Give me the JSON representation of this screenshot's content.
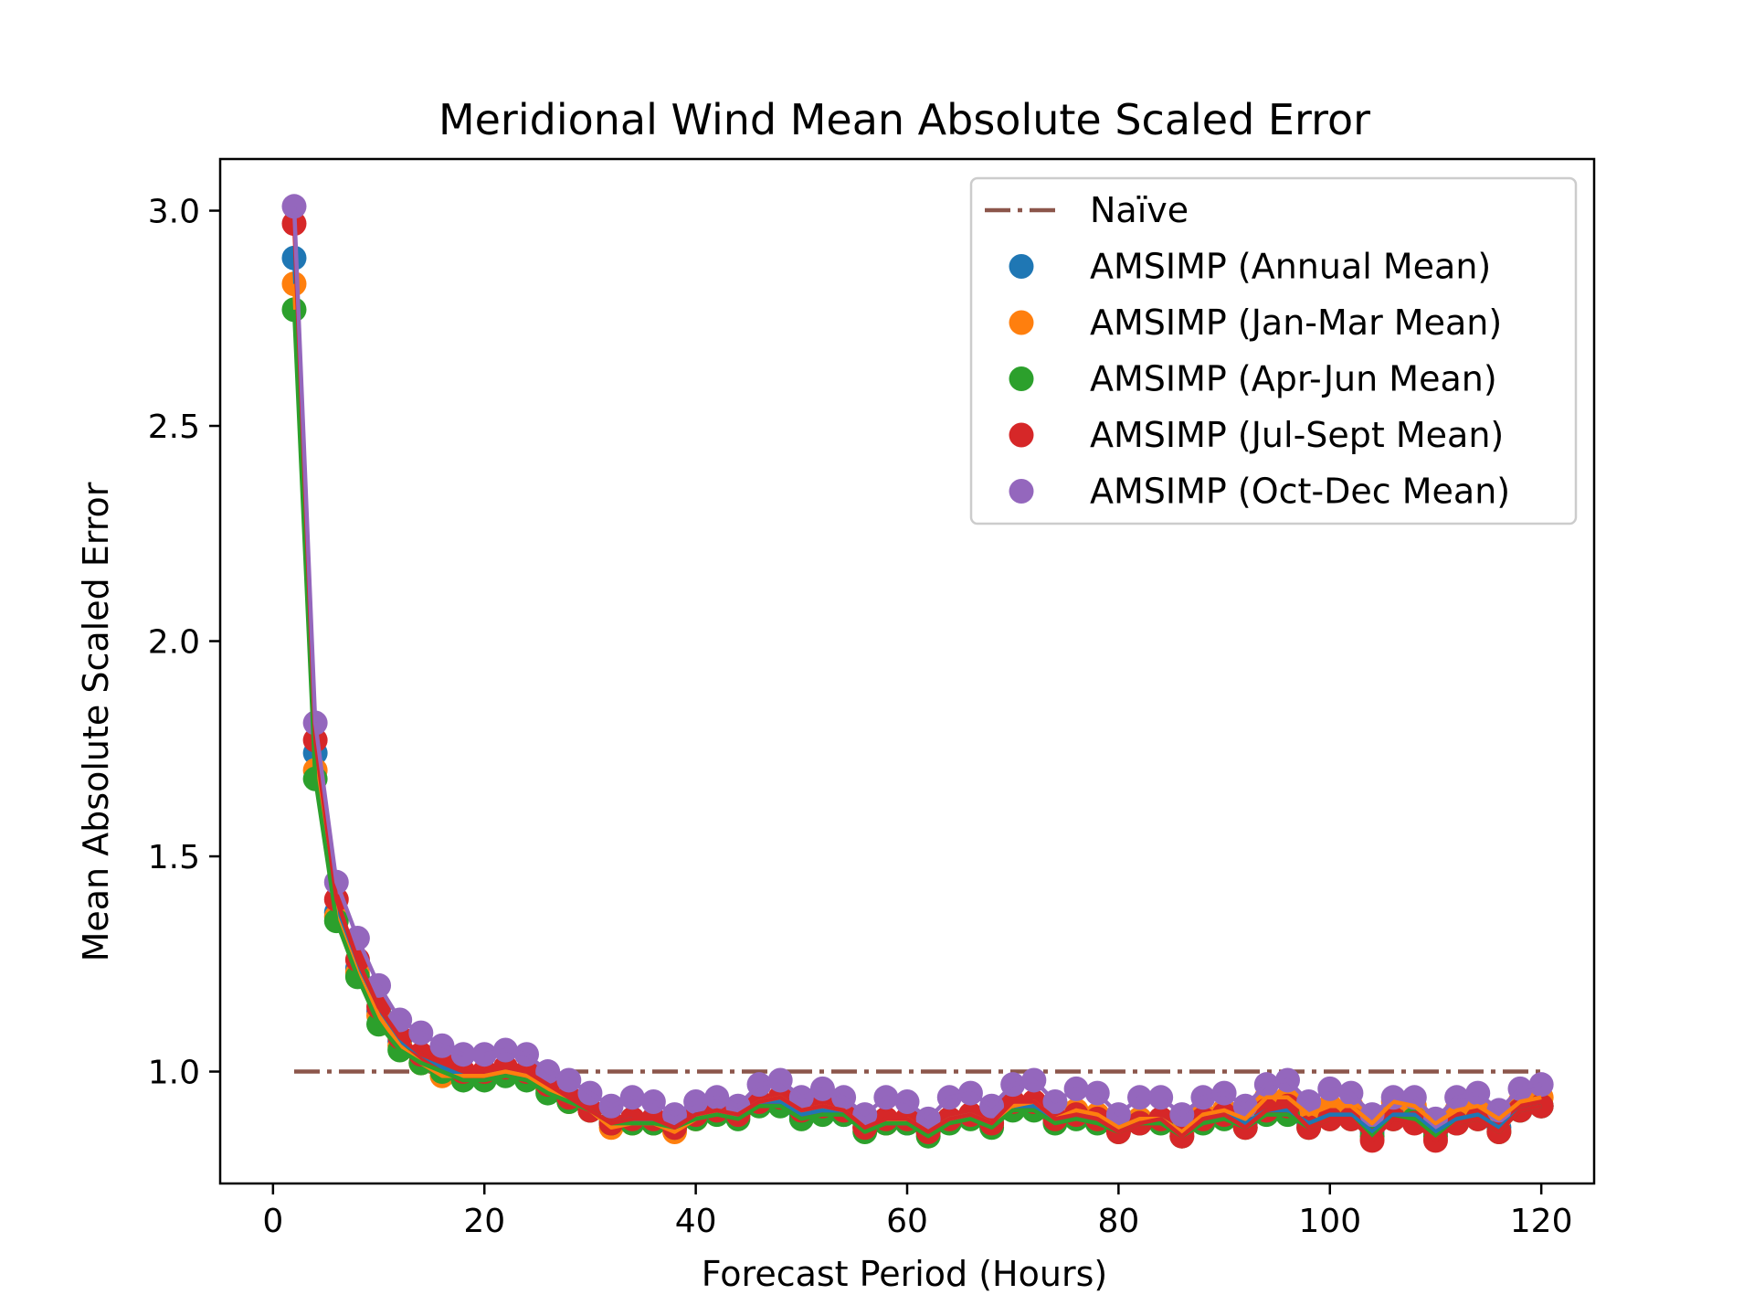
{
  "chart_data": {
    "type": "scatter",
    "title": "Meridional Wind Mean Absolute Scaled Error",
    "xlabel": "Forecast Period (Hours)",
    "ylabel": "Mean Absolute Scaled Error",
    "xlim": [
      -5,
      125
    ],
    "ylim": [
      0.74,
      3.12
    ],
    "xticks": [
      0,
      20,
      40,
      60,
      80,
      100,
      120
    ],
    "xtick_labels": [
      "0",
      "20",
      "40",
      "60",
      "80",
      "100",
      "120"
    ],
    "yticks": [
      1.0,
      1.5,
      2.0,
      2.5,
      3.0
    ],
    "ytick_labels": [
      "1.0",
      "1.5",
      "2.0",
      "2.5",
      "3.0"
    ],
    "grid": false,
    "legend_position": "top-right",
    "x": [
      2,
      4,
      6,
      8,
      10,
      12,
      14,
      16,
      18,
      20,
      22,
      24,
      26,
      28,
      30,
      32,
      34,
      36,
      38,
      40,
      42,
      44,
      46,
      48,
      50,
      52,
      54,
      56,
      58,
      60,
      62,
      64,
      66,
      68,
      70,
      72,
      74,
      76,
      78,
      80,
      82,
      84,
      86,
      88,
      90,
      92,
      94,
      96,
      98,
      100,
      102,
      104,
      106,
      108,
      110,
      112,
      114,
      116,
      118,
      120
    ],
    "reference_line": {
      "name": "Naïve",
      "x": [
        2,
        120
      ],
      "y": [
        1.0,
        1.0
      ],
      "color": "#8c564b",
      "style": "dash-dot"
    },
    "series": [
      {
        "name": "AMSIMP (Annual Mean)",
        "color": "#1f77b4",
        "values": [
          2.89,
          1.74,
          1.37,
          1.24,
          1.14,
          1.07,
          1.04,
          1.01,
          0.99,
          0.99,
          1.0,
          0.99,
          0.96,
          0.94,
          0.91,
          0.88,
          0.89,
          0.88,
          0.87,
          0.9,
          0.91,
          0.9,
          0.93,
          0.93,
          0.9,
          0.91,
          0.9,
          0.87,
          0.88,
          0.88,
          0.86,
          0.89,
          0.9,
          0.88,
          0.92,
          0.92,
          0.89,
          0.9,
          0.89,
          0.87,
          0.89,
          0.89,
          0.86,
          0.89,
          0.9,
          0.88,
          0.91,
          0.91,
          0.88,
          0.9,
          0.9,
          0.86,
          0.9,
          0.9,
          0.86,
          0.89,
          0.9,
          0.87,
          0.91,
          0.92
        ]
      },
      {
        "name": "AMSIMP (Jan-Mar Mean)",
        "color": "#ff7f0e",
        "values": [
          2.83,
          1.7,
          1.36,
          1.23,
          1.13,
          1.06,
          1.02,
          0.99,
          0.99,
          0.99,
          1.0,
          0.99,
          0.96,
          0.93,
          0.91,
          0.87,
          0.88,
          0.88,
          0.86,
          0.89,
          0.91,
          0.9,
          0.93,
          0.94,
          0.91,
          0.92,
          0.91,
          0.87,
          0.88,
          0.89,
          0.86,
          0.89,
          0.9,
          0.88,
          0.92,
          0.93,
          0.89,
          0.91,
          0.9,
          0.87,
          0.89,
          0.89,
          0.86,
          0.9,
          0.91,
          0.89,
          0.94,
          0.94,
          0.9,
          0.92,
          0.92,
          0.88,
          0.93,
          0.92,
          0.88,
          0.91,
          0.92,
          0.89,
          0.93,
          0.94
        ]
      },
      {
        "name": "AMSIMP (Apr-Jun Mean)",
        "color": "#2ca02c",
        "values": [
          2.77,
          1.68,
          1.35,
          1.22,
          1.11,
          1.05,
          1.02,
          1.0,
          0.98,
          0.98,
          0.99,
          0.98,
          0.95,
          0.93,
          0.91,
          0.88,
          0.88,
          0.88,
          0.87,
          0.89,
          0.9,
          0.89,
          0.92,
          0.92,
          0.89,
          0.9,
          0.9,
          0.86,
          0.88,
          0.88,
          0.85,
          0.88,
          0.89,
          0.87,
          0.91,
          0.91,
          0.88,
          0.89,
          0.88,
          0.86,
          0.88,
          0.88,
          0.85,
          0.88,
          0.89,
          0.87,
          0.9,
          0.9,
          0.87,
          0.89,
          0.89,
          0.85,
          0.89,
          0.89,
          0.85,
          0.88,
          0.89,
          0.86,
          0.91,
          0.92
        ]
      },
      {
        "name": "AMSIMP (Jul-Sept Mean)",
        "color": "#d62728",
        "values": [
          2.97,
          1.77,
          1.4,
          1.26,
          1.15,
          1.08,
          1.04,
          1.02,
          1.0,
          1.0,
          1.01,
          1.0,
          0.97,
          0.94,
          0.91,
          0.88,
          0.89,
          0.89,
          0.87,
          0.9,
          0.91,
          0.9,
          0.93,
          0.94,
          0.91,
          0.92,
          0.91,
          0.87,
          0.89,
          0.89,
          0.86,
          0.89,
          0.9,
          0.88,
          0.93,
          0.93,
          0.89,
          0.9,
          0.89,
          0.86,
          0.88,
          0.89,
          0.85,
          0.89,
          0.9,
          0.87,
          0.91,
          0.92,
          0.87,
          0.89,
          0.89,
          0.84,
          0.89,
          0.88,
          0.84,
          0.88,
          0.89,
          0.86,
          0.91,
          0.92
        ]
      },
      {
        "name": "AMSIMP (Oct-Dec Mean)",
        "color": "#9467bd",
        "values": [
          3.01,
          1.81,
          1.44,
          1.31,
          1.2,
          1.12,
          1.09,
          1.06,
          1.04,
          1.04,
          1.05,
          1.04,
          1.0,
          0.98,
          0.95,
          0.92,
          0.94,
          0.93,
          0.9,
          0.93,
          0.94,
          0.92,
          0.97,
          0.98,
          0.94,
          0.96,
          0.94,
          0.9,
          0.94,
          0.93,
          0.89,
          0.94,
          0.95,
          0.92,
          0.97,
          0.98,
          0.93,
          0.96,
          0.95,
          0.9,
          0.94,
          0.94,
          0.9,
          0.94,
          0.95,
          0.92,
          0.97,
          0.98,
          0.93,
          0.96,
          0.95,
          0.9,
          0.94,
          0.94,
          0.89,
          0.94,
          0.95,
          0.91,
          0.96,
          0.97
        ]
      }
    ]
  }
}
